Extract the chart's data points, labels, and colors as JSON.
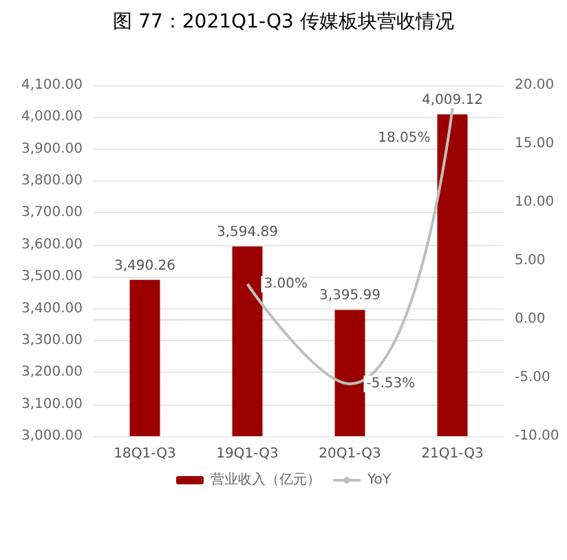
{
  "chart_data": {
    "type": "bar",
    "title": "图 77：2021Q1-Q3 传媒板块营收情况",
    "categories": [
      "18Q1-Q3",
      "19Q1-Q3",
      "20Q1-Q3",
      "21Q1-Q3"
    ],
    "series": [
      {
        "name": "营业收入（亿元）",
        "color": "#9b0000",
        "values": [
          3490.26,
          3594.89,
          3395.99,
          4009.12
        ],
        "value_labels": [
          "3,490.26",
          "3,594.89",
          "3,395.99",
          "4,009.12"
        ]
      },
      {
        "name": "YoY",
        "type": "line",
        "axis": "y2",
        "color": "#bfbfbf",
        "values": [
          null,
          3.0,
          -5.53,
          18.05
        ],
        "value_labels": [
          null,
          "3.00%",
          "-5.53%",
          "18.05%"
        ]
      }
    ],
    "ylim": [
      3000,
      4100
    ],
    "yticks": [
      {
        "value": 3000,
        "label": "3,000.00"
      },
      {
        "value": 3100,
        "label": "3,100.00"
      },
      {
        "value": 3200,
        "label": "3,200.00"
      },
      {
        "value": 3300,
        "label": "3,300.00"
      },
      {
        "value": 3400,
        "label": "3,400.00"
      },
      {
        "value": 3500,
        "label": "3,500.00"
      },
      {
        "value": 3600,
        "label": "3,600.00"
      },
      {
        "value": 3700,
        "label": "3,700.00"
      },
      {
        "value": 3800,
        "label": "3,800.00"
      },
      {
        "value": 3900,
        "label": "3,900.00"
      },
      {
        "value": 4000,
        "label": "4,000.00"
      },
      {
        "value": 4100,
        "label": "4,100.00"
      }
    ],
    "y2lim": [
      -10,
      20
    ],
    "y2ticks": [
      {
        "value": -10,
        "label": "-10.00"
      },
      {
        "value": -5,
        "label": "-5.00"
      },
      {
        "value": 0,
        "label": "0.00"
      },
      {
        "value": 5,
        "label": "5.00"
      },
      {
        "value": 10,
        "label": "10.00"
      },
      {
        "value": 15,
        "label": "15.00"
      },
      {
        "value": 20,
        "label": "20.00"
      }
    ],
    "grid": "y",
    "legend": "bottom",
    "marker": "none"
  }
}
